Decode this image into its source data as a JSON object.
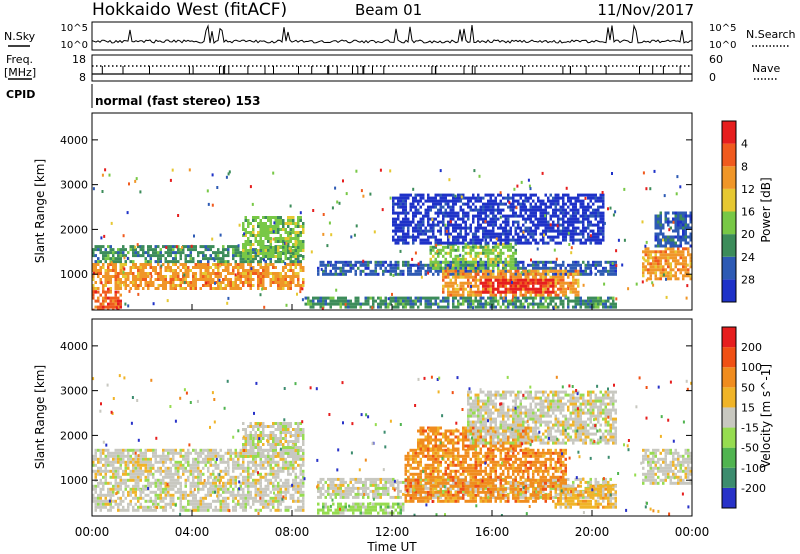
{
  "header": {
    "title": "Hokkaido West (fitACF)",
    "beam": "Beam 01",
    "date": "11/Nov/2017"
  },
  "top_panels": {
    "nsky_label": "N.Sky",
    "nsky_ticks": [
      "10^5",
      "10^0"
    ],
    "nsearch_label": "N.Search",
    "freq_label_1": "Freq.",
    "freq_label_2": "[MHz]",
    "freq_ticks": [
      "18",
      "8"
    ],
    "nave_label": "Nave",
    "nave_ticks": [
      "60",
      "0"
    ],
    "cpid_label": "CPID",
    "cpid_value": "normal (fast stereo) 153"
  },
  "chart_data": [
    {
      "type": "heatmap",
      "name": "power",
      "ylabel": "Slant Range [km]",
      "yticks": [
        "1000",
        "2000",
        "3000",
        "4000"
      ],
      "ylim": [
        200,
        4600
      ],
      "colorbar_label": "Power [dB]",
      "colorbar_ticks": [
        "4",
        "8",
        "12",
        "16",
        "20",
        "24",
        "28"
      ],
      "colors": [
        "#1e32c8",
        "#2d5ab4",
        "#3c8c5a",
        "#78c846",
        "#e6c832",
        "#f09628",
        "#f05a1e",
        "#e61e1e"
      ],
      "bands": [
        {
          "t0": 0.0,
          "t1": 1.2,
          "r0": 200,
          "r1": 700,
          "level": 6
        },
        {
          "t0": 0.0,
          "t1": 8.5,
          "r0": 700,
          "r1": 1250,
          "level": 5
        },
        {
          "t0": 0.0,
          "t1": 8.5,
          "r0": 1250,
          "r1": 1650,
          "level": 2
        },
        {
          "t0": 6.0,
          "t1": 8.5,
          "r0": 1400,
          "r1": 2300,
          "level": 3
        },
        {
          "t0": 9.0,
          "t1": 21.0,
          "r0": 1000,
          "r1": 1300,
          "level": 1
        },
        {
          "t0": 14.0,
          "t1": 19.5,
          "r0": 500,
          "r1": 1100,
          "level": 5
        },
        {
          "t0": 15.5,
          "t1": 18.5,
          "r0": 600,
          "r1": 900,
          "level": 7
        },
        {
          "t0": 13.5,
          "t1": 17.0,
          "r0": 1100,
          "r1": 1700,
          "level": 3
        },
        {
          "t0": 8.5,
          "t1": 21.0,
          "r0": 250,
          "r1": 500,
          "level": 2
        },
        {
          "t0": 12.0,
          "t1": 20.5,
          "r0": 1700,
          "r1": 2800,
          "level": 0
        },
        {
          "t0": 22.0,
          "t1": 24.0,
          "r0": 900,
          "r1": 1600,
          "level": 5
        },
        {
          "t0": 22.5,
          "t1": 24.0,
          "r0": 1600,
          "r1": 2400,
          "level": 1
        }
      ]
    },
    {
      "type": "heatmap",
      "name": "velocity",
      "ylabel": "Slant Range [km]",
      "yticks": [
        "1000",
        "2000",
        "3000",
        "4000"
      ],
      "ylim": [
        200,
        4600
      ],
      "colorbar_label": "Velocity [m s^-1]",
      "colorbar_ticks": [
        "200",
        "100",
        "50",
        "15",
        "-15",
        "-50",
        "-100",
        "-200"
      ],
      "colors": [
        "#2832c8",
        "#3c8c6e",
        "#50b450",
        "#96dc50",
        "#c8c8c0",
        "#f0b428",
        "#f08c1e",
        "#f05014",
        "#e61e1e"
      ],
      "bands": [
        {
          "t0": 0.0,
          "t1": 8.5,
          "r0": 300,
          "r1": 1700,
          "level": 4
        },
        {
          "t0": 6.0,
          "t1": 8.5,
          "r0": 1500,
          "r1": 2300,
          "level": 4
        },
        {
          "t0": 9.0,
          "t1": 12.5,
          "r0": 250,
          "r1": 500,
          "level": 3
        },
        {
          "t0": 9.0,
          "t1": 21.0,
          "r0": 600,
          "r1": 1050,
          "level": 4
        },
        {
          "t0": 12.5,
          "t1": 19.0,
          "r0": 500,
          "r1": 1700,
          "level": 6
        },
        {
          "t0": 13.0,
          "t1": 17.5,
          "r0": 1700,
          "r1": 2200,
          "level": 6
        },
        {
          "t0": 18.5,
          "t1": 21.0,
          "r0": 400,
          "r1": 900,
          "level": 5
        },
        {
          "t0": 22.0,
          "t1": 24.0,
          "r0": 900,
          "r1": 1700,
          "level": 4
        },
        {
          "t0": 15.0,
          "t1": 21.0,
          "r0": 1800,
          "r1": 3000,
          "level": 4
        }
      ]
    }
  ],
  "x_axis": {
    "ticks": [
      "00:00",
      "04:00",
      "08:00",
      "12:00",
      "16:00",
      "20:00",
      "00:00"
    ],
    "label": "Time UT",
    "range_hours": [
      0,
      24
    ]
  }
}
